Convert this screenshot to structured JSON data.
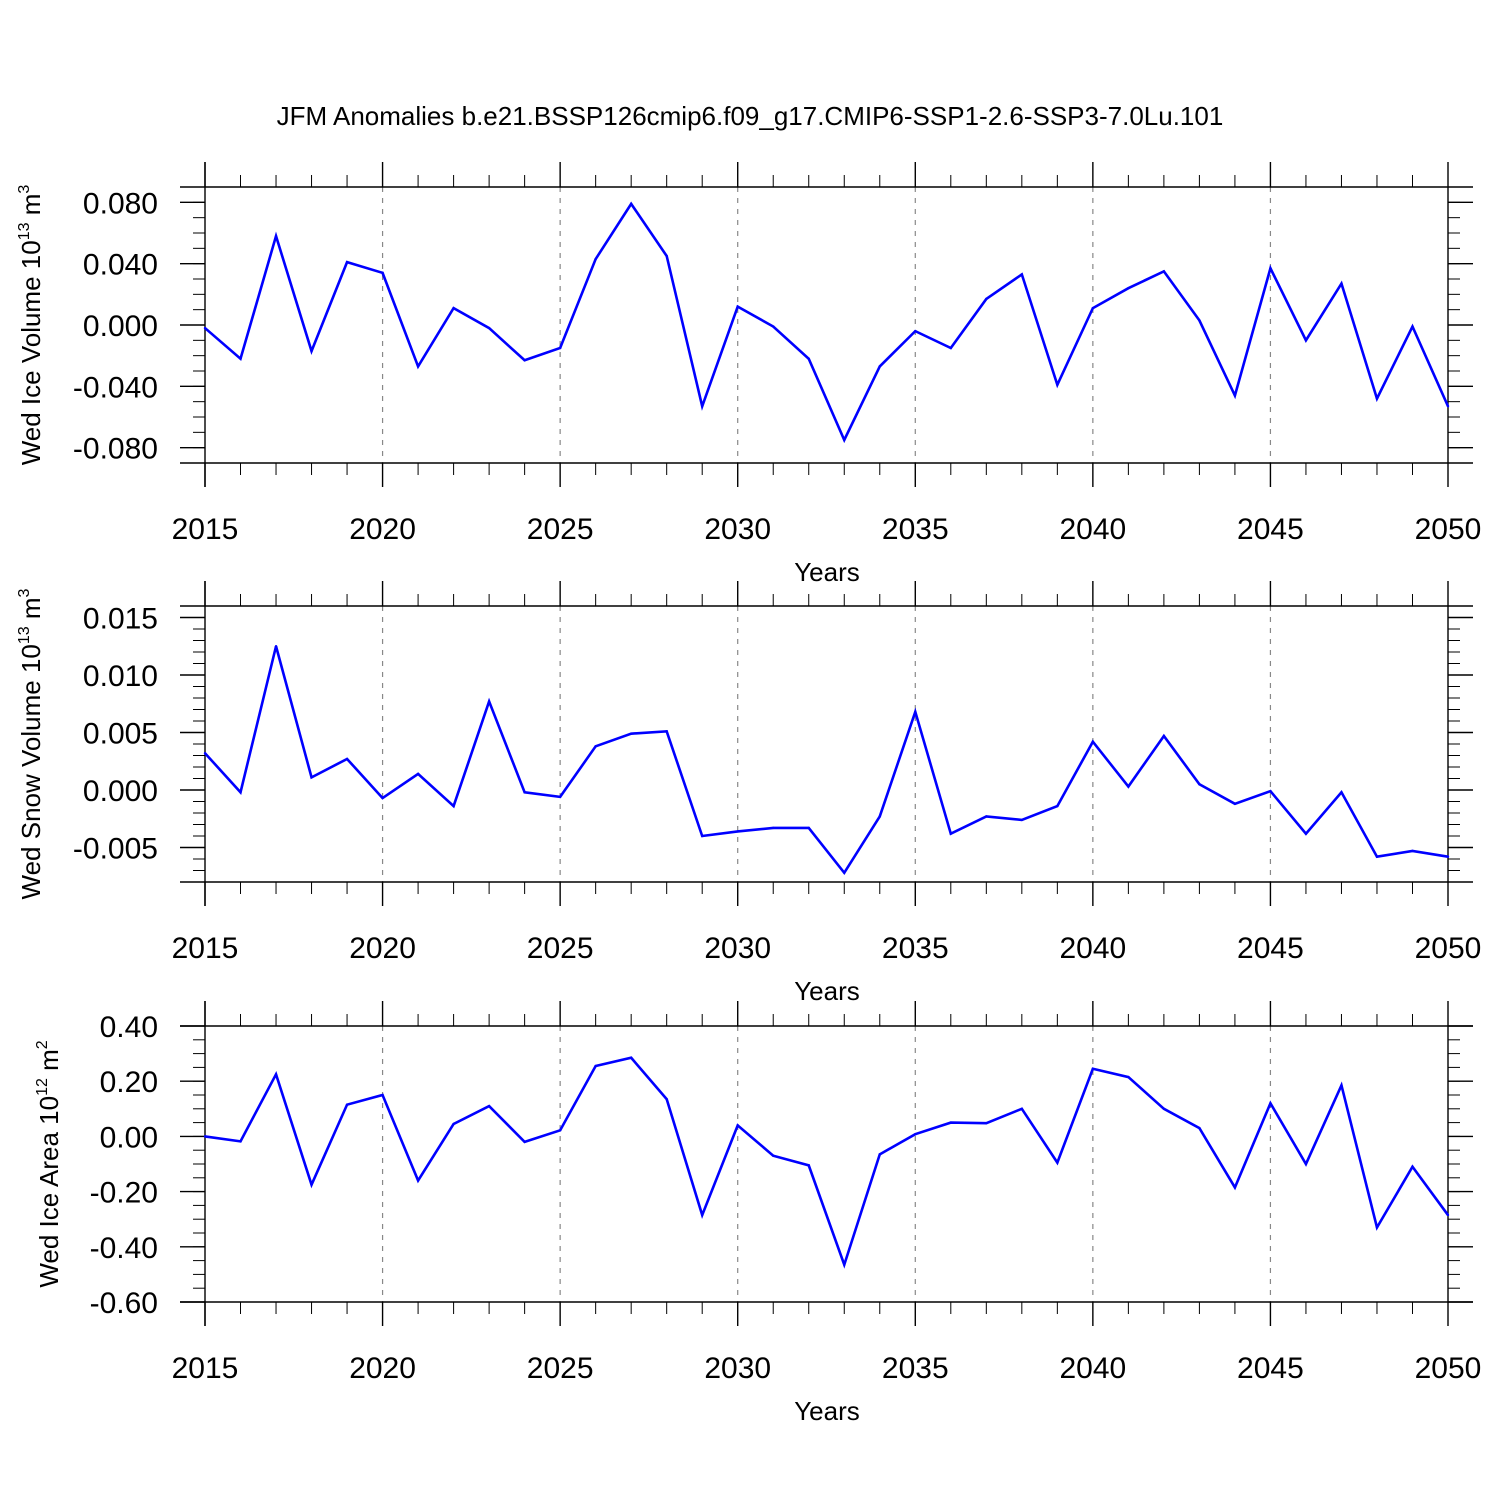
{
  "colors": {
    "line": "#0000ff",
    "axis": "#000000",
    "grid": "#888888"
  },
  "chart_data": {
    "title": "JFM Anomalies b.e21.BSSP126cmip6.f09_g17.CMIP6-SSP1-2.6-SSP3-7.0Lu.101",
    "panels": [
      {
        "type": "line",
        "ylabel_text": "Wed Ice Volume 10",
        "ylabel_exp": "13",
        "ylabel_unit": " m",
        "ylabel_unit_exp": "3",
        "xlabel": "Years",
        "xlim": [
          2015,
          2050
        ],
        "ylim": [
          -0.09,
          0.09
        ],
        "yticks": [
          -0.08,
          -0.04,
          0.0,
          0.04,
          0.08
        ],
        "ytick_labels": [
          "-0.080",
          "-0.040",
          "0.000",
          "0.040",
          "0.080"
        ],
        "yminor_step": 0.01,
        "xticks": [
          2015,
          2020,
          2025,
          2030,
          2035,
          2040,
          2045,
          2050
        ],
        "xtick_labels": [
          "2015",
          "2020",
          "2025",
          "2030",
          "2035",
          "2040",
          "2045",
          "2050"
        ],
        "grid_x": [
          2020,
          2025,
          2030,
          2035,
          2040,
          2045
        ],
        "series": [
          {
            "name": "Wed Ice Volume",
            "x": [
              2015,
              2016,
              2017,
              2018,
              2019,
              2020,
              2021,
              2022,
              2023,
              2024,
              2025,
              2026,
              2027,
              2028,
              2029,
              2030,
              2031,
              2032,
              2033,
              2034,
              2035,
              2036,
              2037,
              2038,
              2039,
              2040,
              2041,
              2042,
              2043,
              2044,
              2045,
              2046,
              2047,
              2048,
              2049,
              2050
            ],
            "values": [
              -0.002,
              -0.022,
              0.058,
              -0.017,
              0.041,
              0.034,
              -0.027,
              0.011,
              -0.002,
              -0.023,
              -0.015,
              0.043,
              0.079,
              0.045,
              -0.053,
              0.012,
              -0.001,
              -0.022,
              -0.075,
              -0.027,
              -0.004,
              -0.015,
              0.017,
              0.033,
              -0.039,
              0.011,
              0.024,
              0.035,
              0.003,
              -0.046,
              0.037,
              -0.01,
              0.027,
              -0.048,
              -0.001,
              -0.053
            ]
          }
        ]
      },
      {
        "type": "line",
        "ylabel_text": "Wed Snow Volume 10",
        "ylabel_exp": "13",
        "ylabel_unit": " m",
        "ylabel_unit_exp": "3",
        "xlabel": "Years",
        "xlim": [
          2015,
          2050
        ],
        "ylim": [
          -0.008,
          0.016
        ],
        "yticks": [
          -0.005,
          0.0,
          0.005,
          0.01,
          0.015
        ],
        "ytick_labels": [
          "-0.005",
          "0.000",
          "0.005",
          "0.010",
          "0.015"
        ],
        "yminor_step": 0.001,
        "xticks": [
          2015,
          2020,
          2025,
          2030,
          2035,
          2040,
          2045,
          2050
        ],
        "xtick_labels": [
          "2015",
          "2020",
          "2025",
          "2030",
          "2035",
          "2040",
          "2045",
          "2050"
        ],
        "grid_x": [
          2020,
          2025,
          2030,
          2035,
          2040,
          2045
        ],
        "series": [
          {
            "name": "Wed Snow Volume",
            "x": [
              2015,
              2016,
              2017,
              2018,
              2019,
              2020,
              2021,
              2022,
              2023,
              2024,
              2025,
              2026,
              2027,
              2028,
              2029,
              2030,
              2031,
              2032,
              2033,
              2034,
              2035,
              2036,
              2037,
              2038,
              2039,
              2040,
              2041,
              2042,
              2043,
              2044,
              2045,
              2046,
              2047,
              2048,
              2049,
              2050
            ],
            "values": [
              0.0032,
              -0.0002,
              0.0125,
              0.0011,
              0.0027,
              -0.0007,
              0.0014,
              -0.0014,
              0.0077,
              -0.0002,
              -0.0006,
              0.0038,
              0.0049,
              0.0051,
              -0.004,
              -0.0036,
              -0.0033,
              -0.0033,
              -0.0072,
              -0.0023,
              0.0068,
              -0.0038,
              -0.0023,
              -0.0026,
              -0.0014,
              0.0042,
              0.0003,
              0.0047,
              0.0005,
              -0.0012,
              -0.0001,
              -0.0038,
              -0.0002,
              -0.0058,
              -0.0053,
              -0.0058
            ]
          }
        ]
      },
      {
        "type": "line",
        "ylabel_text": "Wed Ice Area 10",
        "ylabel_exp": "12",
        "ylabel_unit": " m",
        "ylabel_unit_exp": "2",
        "xlabel": "Years",
        "xlim": [
          2015,
          2050
        ],
        "ylim": [
          -0.6,
          0.4
        ],
        "yticks": [
          -0.6,
          -0.4,
          -0.2,
          0.0,
          0.2,
          0.4
        ],
        "ytick_labels": [
          "-0.60",
          "-0.40",
          "-0.20",
          "0.00",
          "0.20",
          "0.40"
        ],
        "yminor_step": 0.05,
        "xticks": [
          2015,
          2020,
          2025,
          2030,
          2035,
          2040,
          2045,
          2050
        ],
        "xtick_labels": [
          "2015",
          "2020",
          "2025",
          "2030",
          "2035",
          "2040",
          "2045",
          "2050"
        ],
        "grid_x": [
          2020,
          2025,
          2030,
          2035,
          2040,
          2045
        ],
        "series": [
          {
            "name": "Wed Ice Area",
            "x": [
              2015,
              2016,
              2017,
              2018,
              2019,
              2020,
              2021,
              2022,
              2023,
              2024,
              2025,
              2026,
              2027,
              2028,
              2029,
              2030,
              2031,
              2032,
              2033,
              2034,
              2035,
              2036,
              2037,
              2038,
              2039,
              2040,
              2041,
              2042,
              2043,
              2044,
              2045,
              2046,
              2047,
              2048,
              2049,
              2050
            ],
            "values": [
              0.0,
              -0.018,
              0.225,
              -0.175,
              0.115,
              0.15,
              -0.16,
              0.045,
              0.11,
              -0.02,
              0.022,
              0.255,
              0.285,
              0.135,
              -0.285,
              0.04,
              -0.07,
              -0.105,
              -0.465,
              -0.065,
              0.008,
              0.05,
              0.048,
              0.1,
              -0.095,
              0.245,
              0.215,
              0.1,
              0.03,
              -0.185,
              0.12,
              -0.1,
              0.185,
              -0.33,
              -0.11,
              -0.285
            ]
          }
        ]
      }
    ]
  }
}
